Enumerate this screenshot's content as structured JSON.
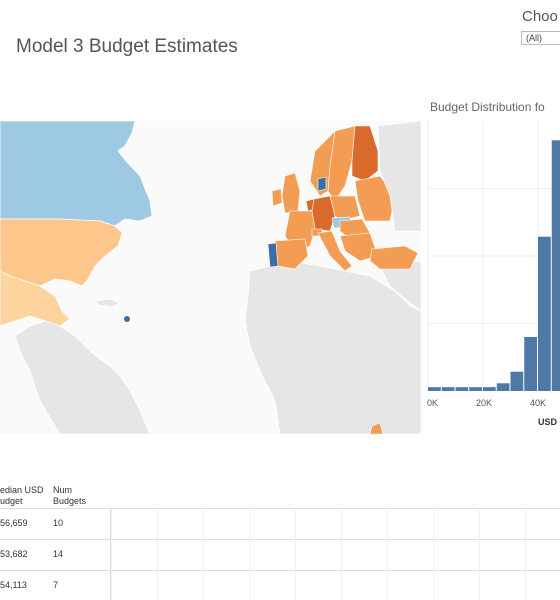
{
  "dashboard": {
    "title": "Model 3 Budget Estimates"
  },
  "filter": {
    "label": "Choo",
    "value": "(All)"
  },
  "histogram": {
    "title": "Budget Distribution fo",
    "xlabel": "USD",
    "ticks": [
      "0K",
      "20K",
      "40K"
    ],
    "color": "#4e79a7"
  },
  "table": {
    "headers": {
      "budget": "edian USD\nudget",
      "num": "Num\nBudgets"
    },
    "rows": [
      {
        "budget": "56,659",
        "num": "10"
      },
      {
        "budget": "53,682",
        "num": "14"
      },
      {
        "budget": "54,113",
        "num": "7"
      }
    ]
  },
  "map": {
    "colors": {
      "canada": "#9ec9e2",
      "usa": "#fdc68b",
      "mexico": "#fdd49e",
      "europe_orange": "#f39c54",
      "europe_dark": "#d96a2b",
      "land_gray": "#e6e6e6",
      "blue_dot": "#3a6fa5"
    }
  },
  "chart_data": {
    "type": "bar",
    "title": "Budget Distribution fo",
    "xlabel": "USD",
    "ylabel": "",
    "x_ticks": [
      "0K",
      "20K",
      "40K"
    ],
    "bin_width_k": 5,
    "bins": [
      {
        "x": 0,
        "value": 1
      },
      {
        "x": 5,
        "value": 1
      },
      {
        "x": 10,
        "value": 1
      },
      {
        "x": 15,
        "value": 1
      },
      {
        "x": 20,
        "value": 1
      },
      {
        "x": 25,
        "value": 2
      },
      {
        "x": 30,
        "value": 5
      },
      {
        "x": 35,
        "value": 14
      },
      {
        "x": 40,
        "value": 40
      },
      {
        "x": 45,
        "value": 65
      }
    ],
    "grid": true
  }
}
